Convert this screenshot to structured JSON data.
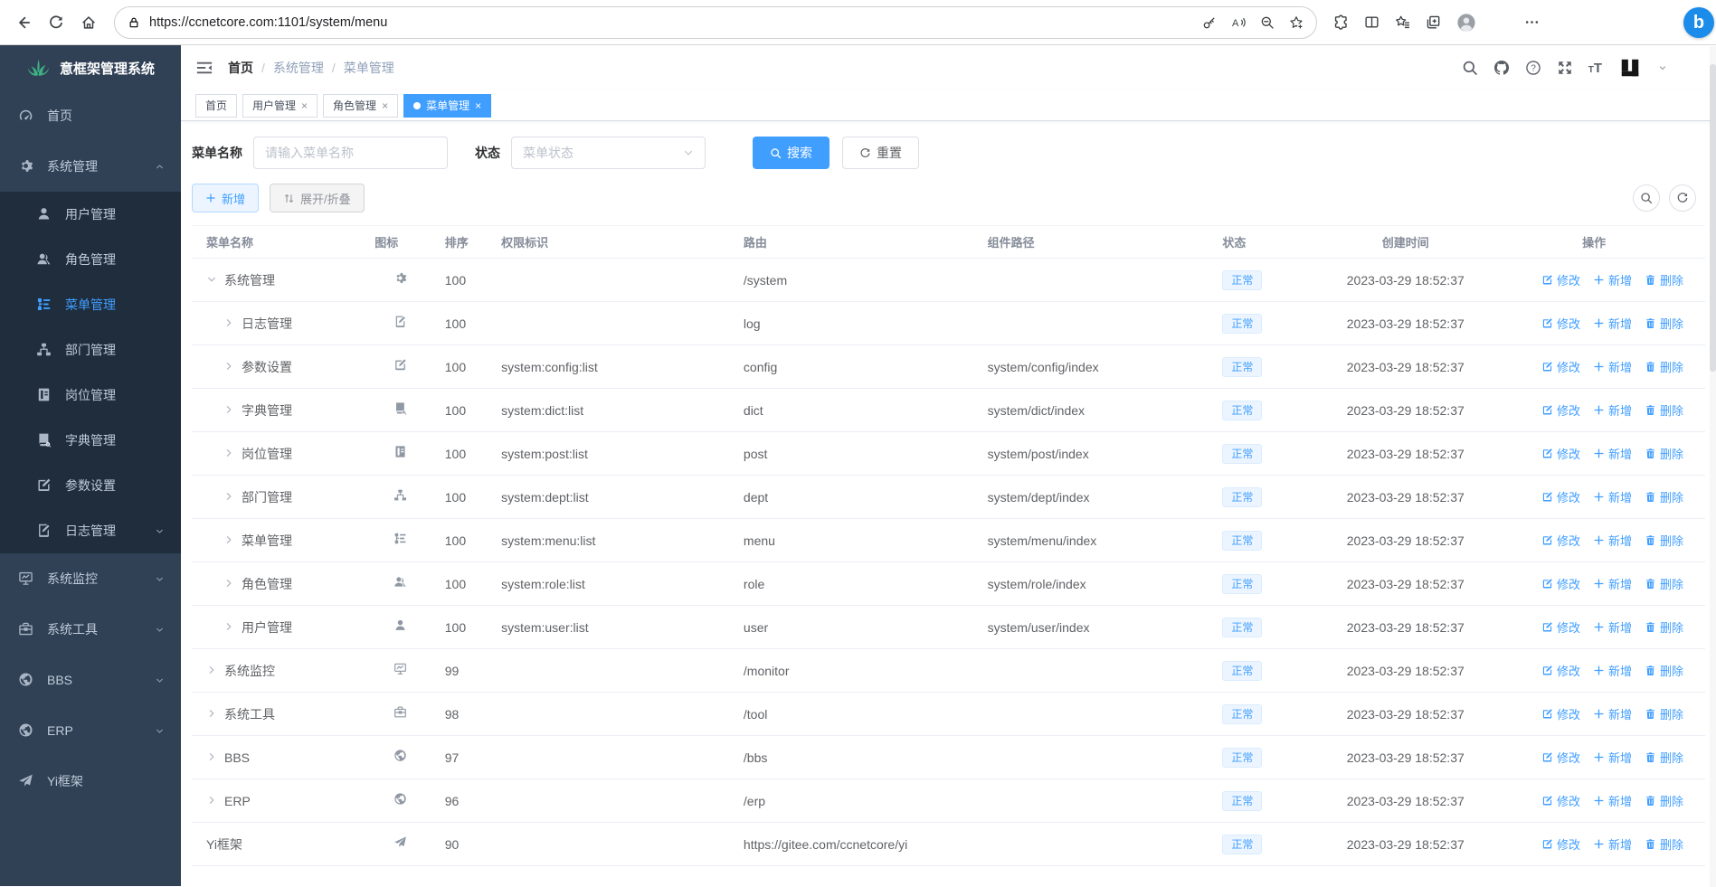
{
  "colors": {
    "accent": "#409eff",
    "sidebar_bg": "#304156",
    "submenu_bg": "#1f2d3d",
    "status_badge_bg": "#ecf5ff",
    "status_badge_border": "#d9ecff",
    "tab_active_bg": "#409eff"
  },
  "browser": {
    "url": "https://ccnetcore.com:1101/system/menu",
    "left_icons": [
      "back-icon",
      "refresh-icon",
      "home-icon"
    ],
    "pill_icons": [
      "lock-icon",
      "key-icon",
      "read-aloud-icon",
      "zoom-out-icon",
      "favorite-star-icon"
    ],
    "right_icons": [
      "extensions-puzzle-icon",
      "split-screen-icon",
      "favorites-icon",
      "collections-icon",
      "profile-avatar",
      "more-dots-icon"
    ],
    "bing_label": "b"
  },
  "sidebar": {
    "logo_text": "意框架管理系统",
    "logo_icon": "leaf-logo-icon",
    "items": [
      {
        "label": "首页",
        "icon": "dashboard-icon"
      },
      {
        "label": "系统管理",
        "icon": "gear-icon",
        "caret": "up",
        "children": [
          {
            "label": "用户管理",
            "icon": "user-icon"
          },
          {
            "label": "角色管理",
            "icon": "users-icon"
          },
          {
            "label": "菜单管理",
            "icon": "menu-tree-icon",
            "active": true
          },
          {
            "label": "部门管理",
            "icon": "org-icon"
          },
          {
            "label": "岗位管理",
            "icon": "badge-icon"
          },
          {
            "label": "字典管理",
            "icon": "book-icon"
          },
          {
            "label": "参数设置",
            "icon": "edit-icon"
          },
          {
            "label": "日志管理",
            "icon": "log-icon",
            "caret": "down"
          }
        ]
      },
      {
        "label": "系统监控",
        "icon": "monitor-icon",
        "caret": "down"
      },
      {
        "label": "系统工具",
        "icon": "toolbox-icon",
        "caret": "down"
      },
      {
        "label": "BBS",
        "icon": "globe-icon",
        "caret": "down"
      },
      {
        "label": "ERP",
        "icon": "globe-icon",
        "caret": "down"
      },
      {
        "label": "Yi框架",
        "icon": "send-icon"
      }
    ]
  },
  "navbar": {
    "breadcrumb": [
      "首页",
      "系统管理",
      "菜单管理"
    ],
    "separator": "/",
    "right_icons": [
      "search-icon",
      "github-icon",
      "question-icon",
      "fullscreen-icon",
      "text-size-icon"
    ]
  },
  "tabs": [
    {
      "label": "首页",
      "closable": false,
      "active": false
    },
    {
      "label": "用户管理",
      "closable": true,
      "active": false
    },
    {
      "label": "角色管理",
      "closable": true,
      "active": false
    },
    {
      "label": "菜单管理",
      "closable": true,
      "active": true
    }
  ],
  "filters": {
    "name_label": "菜单名称",
    "name_placeholder": "请输入菜单名称",
    "status_label": "状态",
    "status_placeholder": "菜单状态",
    "search_label": "搜索",
    "reset_label": "重置"
  },
  "toolbar": {
    "add_label": "新增",
    "expand_collapse_label": "展开/折叠",
    "icon_buttons": [
      "search-icon",
      "refresh-icon"
    ]
  },
  "table": {
    "headers": [
      "菜单名称",
      "图标",
      "排序",
      "权限标识",
      "路由",
      "组件路径",
      "状态",
      "创建时间",
      "操作"
    ],
    "ops": {
      "edit": "修改",
      "add": "新增",
      "delete": "删除"
    },
    "rows": [
      {
        "name": "系统管理",
        "icon": "gear-icon",
        "arrow": "expanded",
        "level": 0,
        "sort": "100",
        "perms": "",
        "route": "/system",
        "component": "",
        "status": "正常",
        "time": "2023-03-29 18:52:37"
      },
      {
        "name": "日志管理",
        "icon": "log-icon",
        "arrow": "collapsed",
        "level": 1,
        "sort": "100",
        "perms": "",
        "route": "log",
        "component": "",
        "status": "正常",
        "time": "2023-03-29 18:52:37"
      },
      {
        "name": "参数设置",
        "icon": "edit-icon",
        "arrow": "collapsed",
        "level": 1,
        "sort": "100",
        "perms": "system:config:list",
        "route": "config",
        "component": "system/config/index",
        "status": "正常",
        "time": "2023-03-29 18:52:37"
      },
      {
        "name": "字典管理",
        "icon": "book-icon",
        "arrow": "collapsed",
        "level": 1,
        "sort": "100",
        "perms": "system:dict:list",
        "route": "dict",
        "component": "system/dict/index",
        "status": "正常",
        "time": "2023-03-29 18:52:37"
      },
      {
        "name": "岗位管理",
        "icon": "badge-icon",
        "arrow": "collapsed",
        "level": 1,
        "sort": "100",
        "perms": "system:post:list",
        "route": "post",
        "component": "system/post/index",
        "status": "正常",
        "time": "2023-03-29 18:52:37"
      },
      {
        "name": "部门管理",
        "icon": "org-icon",
        "arrow": "collapsed",
        "level": 1,
        "sort": "100",
        "perms": "system:dept:list",
        "route": "dept",
        "component": "system/dept/index",
        "status": "正常",
        "time": "2023-03-29 18:52:37"
      },
      {
        "name": "菜单管理",
        "icon": "menu-tree-icon",
        "arrow": "collapsed",
        "level": 1,
        "sort": "100",
        "perms": "system:menu:list",
        "route": "menu",
        "component": "system/menu/index",
        "status": "正常",
        "time": "2023-03-29 18:52:37"
      },
      {
        "name": "角色管理",
        "icon": "users-icon",
        "arrow": "collapsed",
        "level": 1,
        "sort": "100",
        "perms": "system:role:list",
        "route": "role",
        "component": "system/role/index",
        "status": "正常",
        "time": "2023-03-29 18:52:37"
      },
      {
        "name": "用户管理",
        "icon": "user-icon",
        "arrow": "collapsed",
        "level": 1,
        "sort": "100",
        "perms": "system:user:list",
        "route": "user",
        "component": "system/user/index",
        "status": "正常",
        "time": "2023-03-29 18:52:37"
      },
      {
        "name": "系统监控",
        "icon": "monitor-icon",
        "arrow": "collapsed",
        "level": 0,
        "sort": "99",
        "perms": "",
        "route": "/monitor",
        "component": "",
        "status": "正常",
        "time": "2023-03-29 18:52:37"
      },
      {
        "name": "系统工具",
        "icon": "toolbox-icon",
        "arrow": "collapsed",
        "level": 0,
        "sort": "98",
        "perms": "",
        "route": "/tool",
        "component": "",
        "status": "正常",
        "time": "2023-03-29 18:52:37"
      },
      {
        "name": "BBS",
        "icon": "globe-icon",
        "arrow": "collapsed",
        "level": 0,
        "sort": "97",
        "perms": "",
        "route": "/bbs",
        "component": "",
        "status": "正常",
        "time": "2023-03-29 18:52:37"
      },
      {
        "name": "ERP",
        "icon": "globe-icon",
        "arrow": "collapsed",
        "level": 0,
        "sort": "96",
        "perms": "",
        "route": "/erp",
        "component": "",
        "status": "正常",
        "time": "2023-03-29 18:52:37"
      },
      {
        "name": "Yi框架",
        "icon": "send-icon",
        "arrow": "none",
        "level": 0,
        "sort": "90",
        "perms": "",
        "route": "https://gitee.com/ccnetcore/yi",
        "component": "",
        "status": "正常",
        "time": "2023-03-29 18:52:37"
      }
    ]
  }
}
